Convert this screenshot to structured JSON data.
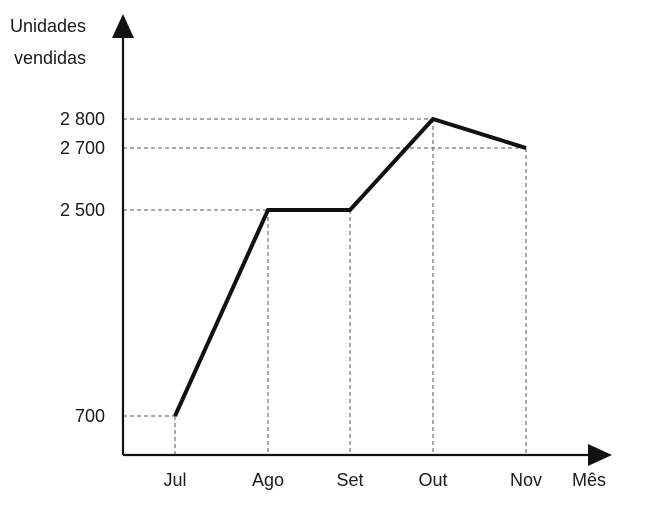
{
  "chart_data": {
    "type": "line",
    "ylabel_lines": [
      "Unidades",
      "vendidas"
    ],
    "xlabel": "Mês",
    "categories": [
      "Jul",
      "Ago",
      "Set",
      "Out",
      "Nov"
    ],
    "values": [
      700,
      2500,
      2500,
      2800,
      2700
    ],
    "yticks": [
      {
        "value": 700,
        "label": "700"
      },
      {
        "value": 2500,
        "label": "2 500"
      },
      {
        "value": 2700,
        "label": "2 700"
      },
      {
        "value": 2800,
        "label": "2 800"
      }
    ],
    "ylim_note": "non-linear axis: ticks placed at listed values only",
    "grid": false,
    "guide_lines": "dashed, from each point to both axes",
    "line_color": "#111111"
  }
}
